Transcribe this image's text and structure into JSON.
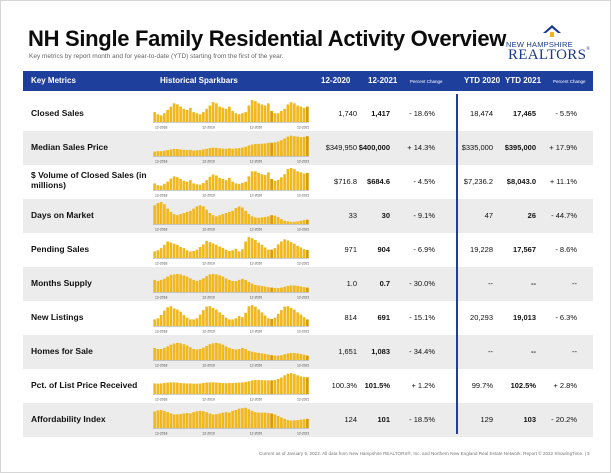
{
  "header": {
    "title": "NH Single Family Residential Activity Overview",
    "subtitle": "Key metrics by report month and for year-to-date (YTD) starting from the first of the year."
  },
  "logo": {
    "line1": "NEW HAMPSHIRE",
    "line2": "REALTORS",
    "reg": "®"
  },
  "colors": {
    "header_bg": "#1f3f9d",
    "bar": "#f2b71a",
    "bar_highlight": "#d99a05",
    "row_shade": "#ececec"
  },
  "columns": {
    "metric": "Key Metrics",
    "spark": "Historical Sparkbars",
    "m1": "12-2020",
    "m2": "12-2021",
    "pc1": "Percent Change",
    "y1": "YTD 2020",
    "y2": "YTD 2021",
    "pc2": "Percent Change"
  },
  "spark_ticks": [
    "12-2018",
    "12-2019",
    "12-2020",
    "12-2021"
  ],
  "rows": [
    {
      "label": "Closed Sales",
      "m1": "1,740",
      "m2": "1,417",
      "pc1": "- 18.6%",
      "y1": "18,474",
      "y2": "17,465",
      "pc2": "- 5.5%",
      "spark": [
        0.45,
        0.35,
        0.3,
        0.4,
        0.55,
        0.7,
        0.85,
        0.8,
        0.7,
        0.6,
        0.55,
        0.65,
        0.45,
        0.4,
        0.35,
        0.45,
        0.6,
        0.75,
        0.9,
        0.85,
        0.7,
        0.65,
        0.6,
        0.7,
        0.5,
        0.4,
        0.35,
        0.4,
        0.45,
        0.75,
        1.0,
        0.95,
        0.85,
        0.8,
        0.75,
        0.85,
        0.5,
        0.4,
        0.4,
        0.5,
        0.6,
        0.8,
        0.9,
        0.85,
        0.75,
        0.7,
        0.65,
        0.7
      ]
    },
    {
      "label": "Median Sales Price",
      "m1": "$349,950",
      "m2": "$400,000",
      "pc1": "+ 14.3%",
      "y1": "$335,000",
      "y2": "$395,000",
      "pc2": "+ 17.9%",
      "spark": [
        0.2,
        0.22,
        0.22,
        0.24,
        0.27,
        0.3,
        0.32,
        0.32,
        0.3,
        0.28,
        0.27,
        0.28,
        0.25,
        0.26,
        0.27,
        0.3,
        0.33,
        0.36,
        0.38,
        0.37,
        0.35,
        0.34,
        0.33,
        0.35,
        0.33,
        0.35,
        0.36,
        0.38,
        0.42,
        0.48,
        0.52,
        0.55,
        0.55,
        0.56,
        0.57,
        0.6,
        0.6,
        0.62,
        0.66,
        0.72,
        0.8,
        0.88,
        0.92,
        0.9,
        0.88,
        0.86,
        0.87,
        0.9
      ]
    },
    {
      "label": "$ Volume of Closed Sales (in millions)",
      "m1": "$716.8",
      "m2": "$684.6",
      "pc1": "- 4.5%",
      "y1": "$7,236.2",
      "y2": "$8,043.0",
      "pc2": "+ 11.1%",
      "spark": [
        0.3,
        0.22,
        0.2,
        0.28,
        0.38,
        0.52,
        0.62,
        0.58,
        0.5,
        0.42,
        0.38,
        0.45,
        0.3,
        0.26,
        0.24,
        0.32,
        0.45,
        0.6,
        0.7,
        0.66,
        0.55,
        0.5,
        0.45,
        0.55,
        0.38,
        0.3,
        0.28,
        0.32,
        0.38,
        0.62,
        0.85,
        0.85,
        0.78,
        0.72,
        0.68,
        0.8,
        0.5,
        0.42,
        0.46,
        0.58,
        0.72,
        0.95,
        1.0,
        0.95,
        0.85,
        0.8,
        0.75,
        0.78
      ]
    },
    {
      "label": "Days on Market",
      "m1": "33",
      "m2": "30",
      "pc1": "- 9.1%",
      "y1": "47",
      "y2": "26",
      "pc2": "- 44.7%",
      "spark": [
        0.85,
        0.95,
        1.0,
        0.9,
        0.7,
        0.55,
        0.45,
        0.4,
        0.45,
        0.5,
        0.55,
        0.6,
        0.7,
        0.8,
        0.85,
        0.8,
        0.65,
        0.5,
        0.4,
        0.35,
        0.4,
        0.45,
        0.5,
        0.55,
        0.6,
        0.72,
        0.8,
        0.75,
        0.6,
        0.45,
        0.35,
        0.3,
        0.28,
        0.3,
        0.32,
        0.35,
        0.4,
        0.38,
        0.32,
        0.22,
        0.15,
        0.12,
        0.1,
        0.1,
        0.12,
        0.15,
        0.18,
        0.2
      ]
    },
    {
      "label": "Pending Sales",
      "m1": "971",
      "m2": "904",
      "pc1": "- 6.9%",
      "y1": "19,228",
      "y2": "17,567",
      "pc2": "- 8.6%",
      "spark": [
        0.3,
        0.35,
        0.45,
        0.6,
        0.75,
        0.7,
        0.65,
        0.6,
        0.5,
        0.45,
        0.35,
        0.3,
        0.32,
        0.38,
        0.5,
        0.62,
        0.78,
        0.72,
        0.66,
        0.6,
        0.52,
        0.46,
        0.38,
        0.32,
        0.35,
        0.42,
        0.3,
        0.4,
        0.75,
        0.95,
        0.9,
        0.82,
        0.7,
        0.6,
        0.48,
        0.38,
        0.38,
        0.45,
        0.62,
        0.75,
        0.85,
        0.8,
        0.72,
        0.65,
        0.55,
        0.48,
        0.4,
        0.36
      ]
    },
    {
      "label": "Months Supply",
      "m1": "1.0",
      "m2": "0.7",
      "pc1": "- 30.0%",
      "y1": "--",
      "y2": "--",
      "pc2": "--",
      "spark": [
        0.55,
        0.5,
        0.55,
        0.6,
        0.7,
        0.78,
        0.8,
        0.82,
        0.8,
        0.75,
        0.7,
        0.62,
        0.55,
        0.5,
        0.55,
        0.62,
        0.72,
        0.8,
        0.82,
        0.8,
        0.76,
        0.7,
        0.62,
        0.55,
        0.5,
        0.5,
        0.55,
        0.6,
        0.55,
        0.45,
        0.38,
        0.32,
        0.3,
        0.28,
        0.25,
        0.22,
        0.2,
        0.18,
        0.18,
        0.2,
        0.24,
        0.28,
        0.3,
        0.3,
        0.28,
        0.25,
        0.22,
        0.2
      ]
    },
    {
      "label": "New Listings",
      "m1": "814",
      "m2": "691",
      "pc1": "- 15.1%",
      "y1": "20,293",
      "y2": "19,013",
      "pc2": "- 6.3%",
      "spark": [
        0.3,
        0.35,
        0.5,
        0.7,
        0.85,
        0.9,
        0.8,
        0.75,
        0.65,
        0.5,
        0.38,
        0.3,
        0.3,
        0.35,
        0.52,
        0.72,
        0.88,
        0.9,
        0.82,
        0.75,
        0.62,
        0.5,
        0.38,
        0.3,
        0.3,
        0.35,
        0.45,
        0.4,
        0.6,
        0.9,
        0.95,
        0.88,
        0.75,
        0.62,
        0.48,
        0.35,
        0.32,
        0.38,
        0.55,
        0.72,
        0.88,
        0.9,
        0.82,
        0.75,
        0.62,
        0.52,
        0.4,
        0.3
      ]
    },
    {
      "label": "Homes for Sale",
      "m1": "1,651",
      "m2": "1,083",
      "pc1": "- 34.4%",
      "y1": "--",
      "y2": "--",
      "pc2": "--",
      "spark": [
        0.55,
        0.5,
        0.5,
        0.55,
        0.62,
        0.7,
        0.75,
        0.78,
        0.76,
        0.72,
        0.66,
        0.58,
        0.5,
        0.48,
        0.5,
        0.56,
        0.64,
        0.72,
        0.76,
        0.78,
        0.75,
        0.7,
        0.62,
        0.55,
        0.5,
        0.48,
        0.5,
        0.55,
        0.5,
        0.42,
        0.38,
        0.35,
        0.32,
        0.3,
        0.28,
        0.25,
        0.22,
        0.2,
        0.2,
        0.22,
        0.26,
        0.3,
        0.32,
        0.32,
        0.3,
        0.27,
        0.24,
        0.2
      ]
    },
    {
      "label": "Pct. of List Price Received",
      "m1": "100.3%",
      "m2": "101.5%",
      "pc1": "+ 1.2%",
      "y1": "99.7%",
      "y2": "102.5%",
      "pc2": "+ 2.8%",
      "spark": [
        0.48,
        0.47,
        0.48,
        0.5,
        0.52,
        0.53,
        0.53,
        0.52,
        0.5,
        0.49,
        0.48,
        0.48,
        0.47,
        0.47,
        0.48,
        0.5,
        0.52,
        0.53,
        0.53,
        0.52,
        0.51,
        0.5,
        0.49,
        0.5,
        0.5,
        0.51,
        0.52,
        0.53,
        0.55,
        0.58,
        0.62,
        0.64,
        0.64,
        0.63,
        0.62,
        0.62,
        0.62,
        0.64,
        0.68,
        0.75,
        0.85,
        0.92,
        0.95,
        0.92,
        0.85,
        0.8,
        0.78,
        0.76
      ]
    },
    {
      "label": "Affordability Index",
      "m1": "124",
      "m2": "101",
      "pc1": "- 18.5%",
      "y1": "129",
      "y2": "103",
      "pc2": "- 20.2%",
      "spark": [
        0.75,
        0.8,
        0.82,
        0.78,
        0.72,
        0.66,
        0.62,
        0.62,
        0.64,
        0.66,
        0.68,
        0.66,
        0.72,
        0.76,
        0.78,
        0.76,
        0.72,
        0.66,
        0.62,
        0.63,
        0.66,
        0.7,
        0.72,
        0.7,
        0.78,
        0.82,
        0.88,
        0.9,
        0.92,
        0.85,
        0.78,
        0.72,
        0.7,
        0.7,
        0.7,
        0.68,
        0.66,
        0.62,
        0.55,
        0.48,
        0.42,
        0.36,
        0.34,
        0.35,
        0.36,
        0.38,
        0.4,
        0.42
      ]
    }
  ],
  "footer": "Current as of January 5, 2022. All data from New Hampshire REALTORS®, Inc. and Northern New England Real Estate Network. Report © 2022 ShowingTime. | 3"
}
